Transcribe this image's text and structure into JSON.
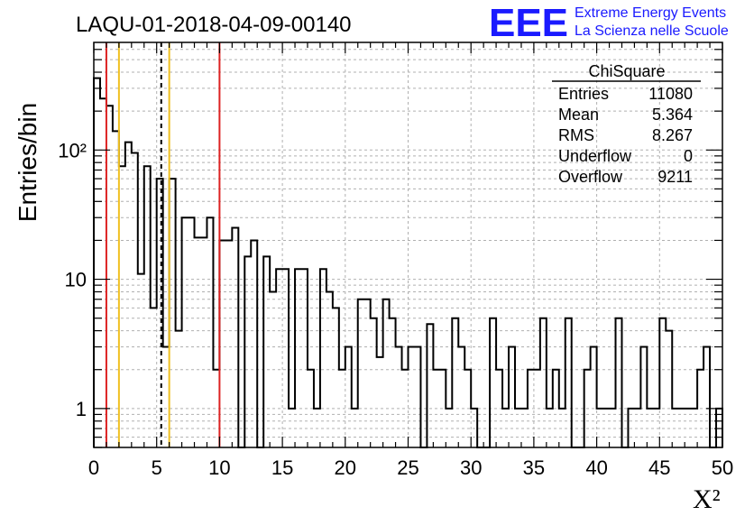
{
  "header": {
    "title": "LAQU-01-2018-04-09-00140",
    "logo_text": "EEE",
    "logo_line1": "Extreme Energy Events",
    "logo_line2": "La Scienza nelle Scuole"
  },
  "stats_box": {
    "title": "ChiSquare",
    "rows": [
      {
        "label": "Entries",
        "value": "11080"
      },
      {
        "label": "Mean",
        "value": "5.364"
      },
      {
        "label": "RMS",
        "value": "8.267"
      },
      {
        "label": "Underflow",
        "value": "0"
      },
      {
        "label": "Overflow",
        "value": "9211"
      }
    ]
  },
  "colors": {
    "red_line": "#dd2222",
    "yellow_line": "#f0c020",
    "logo": "#1a1aff",
    "grid": "#b0b0b0"
  },
  "chart_data": {
    "type": "bar",
    "histogram": true,
    "bin_width": 0.5,
    "xlim": [
      0,
      50
    ],
    "ylim": [
      0.5,
      680
    ],
    "y_scale": "log",
    "grid": true,
    "xlabel": "X²",
    "ylabel": "Entries/bin",
    "x_ticks": [
      0,
      5,
      10,
      15,
      20,
      25,
      30,
      35,
      40,
      45,
      50
    ],
    "x_tick_labels": [
      "0",
      "5",
      "10",
      "15",
      "20",
      "25",
      "30",
      "35",
      "40",
      "45",
      "50"
    ],
    "y_ticks": [
      1,
      10,
      100
    ],
    "y_tick_labels": [
      "1",
      "10",
      "10²"
    ],
    "values": [
      360,
      250,
      220,
      140,
      75,
      115,
      95,
      11,
      75,
      6,
      60,
      3,
      60,
      4,
      30,
      30,
      21,
      21,
      30,
      2,
      20,
      20,
      25,
      0.5,
      15,
      20,
      0.5,
      15,
      8,
      12,
      12,
      1,
      12,
      12,
      2,
      1,
      12,
      8,
      6,
      2,
      3,
      1,
      7,
      7,
      5,
      2.5,
      7,
      5,
      3,
      2,
      3,
      3,
      0.5,
      4.5,
      2,
      2,
      1,
      5,
      3,
      2,
      1,
      0.5,
      0.5,
      5,
      2,
      1,
      3,
      1,
      1,
      2,
      2,
      5,
      1,
      2,
      1,
      5,
      0.5,
      0.5,
      2,
      3,
      1,
      1,
      1,
      5,
      0.5,
      1,
      1,
      3,
      1,
      1,
      5,
      4,
      1,
      1,
      1,
      1,
      2,
      3,
      0.5,
      1
    ],
    "vertical_lines": [
      {
        "x": 1,
        "color": "red",
        "style": "solid"
      },
      {
        "x": 2,
        "color": "yellow",
        "style": "solid"
      },
      {
        "x": 5.364,
        "color": "black",
        "style": "dashed"
      },
      {
        "x": 6,
        "color": "yellow",
        "style": "solid"
      },
      {
        "x": 10,
        "color": "red",
        "style": "solid"
      }
    ]
  }
}
